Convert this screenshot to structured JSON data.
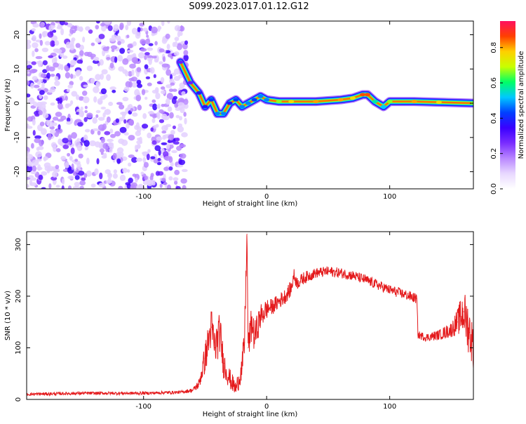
{
  "figure": {
    "title": "S099.2023.017.01.12.G12"
  },
  "colors": {
    "snr_line": "#e41a1c",
    "spectrum_colormap": [
      "#ffffff",
      "#e8d8ff",
      "#b987ff",
      "#7a2dff",
      "#3a00ff",
      "#0040ff",
      "#00c8ff",
      "#00ff66",
      "#c8ff00",
      "#ffd000",
      "#ff4000",
      "#ff1060"
    ]
  },
  "chart_data": [
    {
      "type": "heatmap",
      "title": "",
      "xlabel": "Height of straight line (km)",
      "ylabel": "Frequency (Hz)",
      "xlim": [
        -195,
        168
      ],
      "ylim": [
        -25,
        24
      ],
      "x_ticks": [
        -100,
        0,
        100
      ],
      "x_tick_labels": [
        "-100",
        "0",
        "100"
      ],
      "y_ticks": [
        20,
        10,
        0,
        -10,
        -20
      ],
      "y_tick_labels": [
        "20",
        "10",
        "0",
        "-10",
        "-20"
      ],
      "colorbar": {
        "label": "Normalized spectral amplitude",
        "range": [
          0,
          0.95
        ],
        "ticks": [
          0,
          0.2,
          0.4,
          0.6,
          0.8
        ],
        "tick_labels": [
          "0.0",
          "0.2",
          "0.4",
          "0.6",
          "0.8"
        ]
      },
      "dominant_frequency_track": {
        "x": [
          -70,
          -62,
          -55,
          -50,
          -45,
          -40,
          -35,
          -30,
          -25,
          -20,
          -15,
          -10,
          -5,
          0,
          10,
          20,
          40,
          60,
          70,
          78,
          82,
          88,
          95,
          100,
          120,
          140,
          168
        ],
        "y": [
          12,
          6,
          3,
          -1,
          1,
          -3,
          -3,
          0,
          1,
          -1,
          0,
          1,
          2,
          1,
          0.5,
          0.5,
          0.5,
          1,
          1.5,
          2.5,
          2.5,
          0.5,
          -1,
          0.5,
          0.5,
          0.3,
          0
        ],
        "amplitude": [
          0.3,
          0.3,
          0.4,
          0.4,
          0.45,
          0.5,
          0.5,
          0.4,
          0.45,
          0.5,
          0.5,
          0.45,
          0.5,
          0.5,
          0.7,
          0.8,
          0.85,
          0.85,
          0.8,
          0.9,
          0.9,
          0.6,
          0.55,
          0.7,
          0.85,
          0.8,
          0.7
        ]
      },
      "noise_region_x": [
        -195,
        -65
      ]
    },
    {
      "type": "line",
      "title": "",
      "xlabel": "Height of straight line (km)",
      "ylabel": "SNR (10 * v/v)",
      "xlim": [
        -195,
        168
      ],
      "ylim": [
        0,
        325
      ],
      "x_ticks": [
        -100,
        0,
        100
      ],
      "x_tick_labels": [
        "-100",
        "0",
        "100"
      ],
      "y_ticks": [
        0,
        100,
        200,
        300
      ],
      "y_tick_labels": [
        "0",
        "100",
        "200",
        "300"
      ],
      "series": [
        {
          "x": [
            -195,
            -150,
            -100,
            -70,
            -60,
            -55,
            -50,
            -45,
            -42,
            -38,
            -35,
            -30,
            -25,
            -20,
            -18,
            -16,
            -15,
            -12,
            -10,
            -5,
            0,
            5,
            10,
            15,
            20,
            22,
            25,
            30,
            40,
            50,
            60,
            70,
            80,
            90,
            100,
            110,
            122,
            123,
            130,
            140,
            150,
            155,
            160,
            165,
            168
          ],
          "y": [
            10,
            12,
            12,
            14,
            18,
            30,
            80,
            140,
            100,
            130,
            70,
            40,
            20,
            60,
            110,
            320,
            100,
            150,
            120,
            160,
            175,
            180,
            190,
            200,
            215,
            240,
            225,
            235,
            245,
            248,
            245,
            240,
            232,
            222,
            212,
            205,
            195,
            125,
            120,
            125,
            135,
            150,
            170,
            130,
            100
          ],
          "noise_amplitude": [
            3,
            3,
            3,
            3,
            4,
            10,
            30,
            40,
            40,
            40,
            30,
            20,
            15,
            25,
            40,
            20,
            30,
            35,
            30,
            25,
            20,
            15,
            15,
            15,
            15,
            15,
            12,
            12,
            10,
            10,
            10,
            10,
            10,
            10,
            10,
            10,
            10,
            8,
            8,
            10,
            15,
            25,
            45,
            50,
            40
          ]
        }
      ]
    }
  ]
}
